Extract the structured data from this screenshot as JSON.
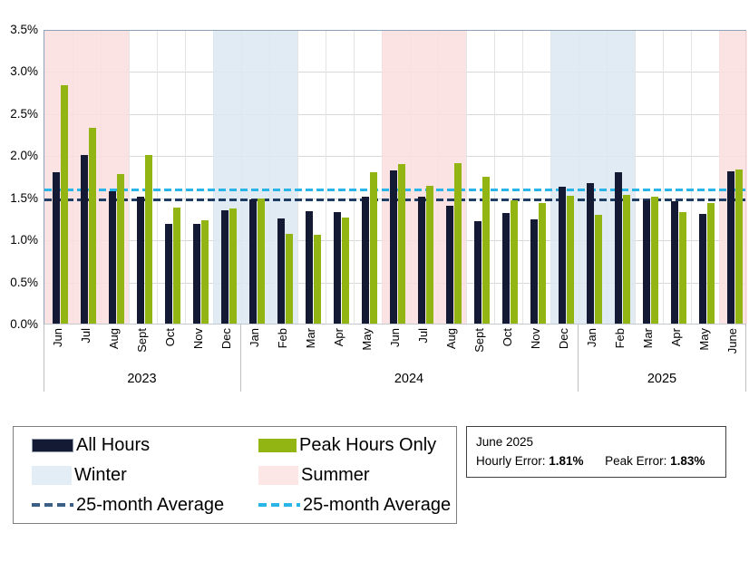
{
  "chart_data": {
    "type": "bar",
    "title": "",
    "xlabel": "",
    "ylabel": "",
    "ylim": [
      0,
      3.5
    ],
    "y_ticks": [
      "0.0%",
      "0.5%",
      "1.0%",
      "1.5%",
      "2.0%",
      "2.5%",
      "3.0%",
      "3.5%"
    ],
    "grid": true,
    "months": [
      "Jun",
      "Jul",
      "Aug",
      "Sept",
      "Oct",
      "Nov",
      "Dec",
      "Jan",
      "Feb",
      "Mar",
      "Apr",
      "May",
      "Jun",
      "Jul",
      "Aug",
      "Sept",
      "Oct",
      "Nov",
      "Dec",
      "Jan",
      "Feb",
      "Mar",
      "Apr",
      "May",
      "June"
    ],
    "year_groups": [
      {
        "label": "2023",
        "start_index": 0,
        "end_index": 6
      },
      {
        "label": "2024",
        "start_index": 7,
        "end_index": 18
      },
      {
        "label": "2025",
        "start_index": 19,
        "end_index": 24
      }
    ],
    "series": [
      {
        "name": "All Hours",
        "color": "#141a33",
        "values": [
          1.8,
          2.0,
          1.57,
          1.51,
          1.18,
          1.18,
          1.35,
          1.48,
          1.25,
          1.34,
          1.33,
          1.51,
          1.82,
          1.51,
          1.4,
          1.22,
          1.31,
          1.24,
          1.63,
          1.67,
          1.8,
          1.47,
          1.45,
          1.3,
          1.81
        ]
      },
      {
        "name": "Peak Hours Only",
        "color": "#93b514",
        "values": [
          2.83,
          2.33,
          1.78,
          2.0,
          1.38,
          1.23,
          1.37,
          1.49,
          1.07,
          1.06,
          1.26,
          1.8,
          1.9,
          1.64,
          1.91,
          1.74,
          1.46,
          1.43,
          1.52,
          1.29,
          1.53,
          1.51,
          1.33,
          1.43,
          1.83
        ]
      }
    ],
    "reference_lines": [
      {
        "name": "25-month Average",
        "applies_to": "All Hours",
        "value": 1.49,
        "color": "#1f3d63"
      },
      {
        "name": "25-month Average",
        "applies_to": "Peak Hours Only",
        "value": 1.61,
        "color": "#29b5e8"
      }
    ],
    "season_bands": [
      {
        "label": "Summer",
        "start_index": 0,
        "end_index": 2,
        "color": "rgba(251,222,222,0.85)"
      },
      {
        "label": "Winter",
        "start_index": 6,
        "end_index": 8,
        "color": "rgba(219,231,242,0.85)"
      },
      {
        "label": "Summer",
        "start_index": 12,
        "end_index": 14,
        "color": "rgba(251,222,222,0.85)"
      },
      {
        "label": "Winter",
        "start_index": 18,
        "end_index": 20,
        "color": "rgba(219,231,242,0.85)"
      },
      {
        "label": "Summer",
        "start_index": 24,
        "end_index": 24,
        "color": "rgba(251,222,222,0.85)"
      }
    ],
    "legend_position": "bottom"
  },
  "legend": {
    "items": [
      {
        "label": "All Hours",
        "swatch": "bar",
        "color": "#141a33"
      },
      {
        "label": "Peak Hours Only",
        "swatch": "bar",
        "color": "#93b514"
      },
      {
        "label": "Winter",
        "swatch": "band",
        "color": "#e3edf6"
      },
      {
        "label": "Summer",
        "swatch": "band",
        "color": "#fce6e6"
      },
      {
        "label": "25-month Average",
        "swatch": "dash",
        "color": "#3c5f86"
      },
      {
        "label": "25-month Average",
        "swatch": "dash",
        "color": "#29b5e8"
      }
    ]
  },
  "callout": {
    "title": "June 2025",
    "hourly_label": "Hourly Error:",
    "hourly_value": "1.81%",
    "peak_label": "Peak Error:",
    "peak_value": "1.83%"
  }
}
